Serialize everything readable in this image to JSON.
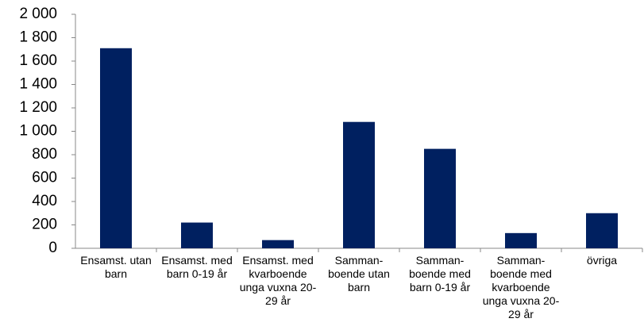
{
  "chart_data": {
    "type": "bar",
    "categories": [
      "Ensamst. utan barn",
      "Ensamst. med barn 0-19 år",
      "Ensamst. med kvarboende unga vuxna 20-29 år",
      "Samman-boende utan barn",
      "Samman-boende med barn 0-19 år",
      "Samman-boende med kvarboende unga vuxna 20-29 år",
      "övriga"
    ],
    "values": [
      1710,
      220,
      70,
      1080,
      850,
      130,
      300
    ],
    "color": "#002060",
    "ylim": [
      0,
      2000
    ],
    "yticks": [
      0,
      200,
      400,
      600,
      800,
      {
        "value": 1000,
        "label": "1 000"
      },
      {
        "value": 1200,
        "label": "1 200"
      },
      {
        "value": 1400,
        "label": "1 400"
      },
      {
        "value": 1600,
        "label": "1 600"
      },
      {
        "value": 1800,
        "label": "1 800"
      },
      {
        "value": 2000,
        "label": "2 000"
      }
    ],
    "grid": false
  }
}
